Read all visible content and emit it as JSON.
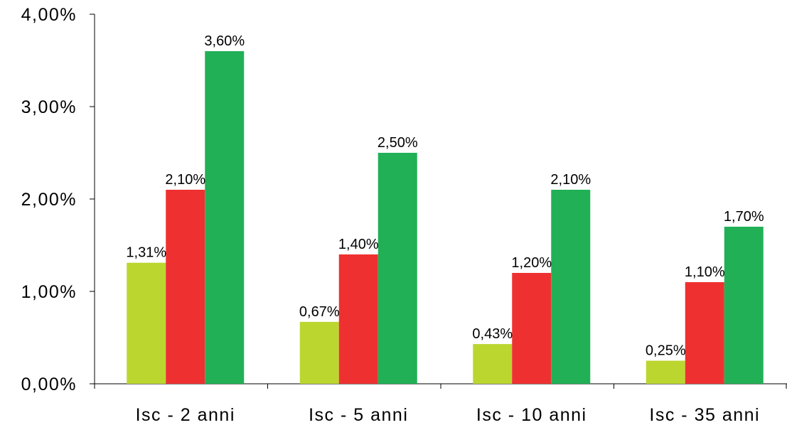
{
  "chart_data": {
    "type": "bar",
    "categories": [
      "Isc - 2 anni",
      "Isc - 5 anni",
      "Isc - 10 anni",
      "Isc - 35 anni"
    ],
    "series": [
      {
        "color": "#bcd630",
        "values": [
          1.31,
          0.67,
          0.43,
          0.25
        ],
        "labels": [
          "1,31%",
          "0,67%",
          "0,43%",
          "0,25%"
        ]
      },
      {
        "color": "#ee3130",
        "values": [
          2.1,
          1.4,
          1.2,
          1.1
        ],
        "labels": [
          "2,10%",
          "1,40%",
          "1,20%",
          "1,10%"
        ]
      },
      {
        "color": "#21b056",
        "values": [
          3.6,
          2.5,
          2.1,
          1.7
        ],
        "labels": [
          "3,60%",
          "2,50%",
          "2,10%",
          "1,70%"
        ]
      }
    ],
    "y_ticks": [
      {
        "value": 0,
        "label": "0,00%"
      },
      {
        "value": 1,
        "label": "1,00%"
      },
      {
        "value": 2,
        "label": "2,00%"
      },
      {
        "value": 3,
        "label": "3,00%"
      },
      {
        "value": 4,
        "label": "4,00%"
      }
    ],
    "ylim": [
      0,
      4
    ],
    "title": "",
    "xlabel": "",
    "ylabel": "",
    "grid": false,
    "legend": "none"
  }
}
